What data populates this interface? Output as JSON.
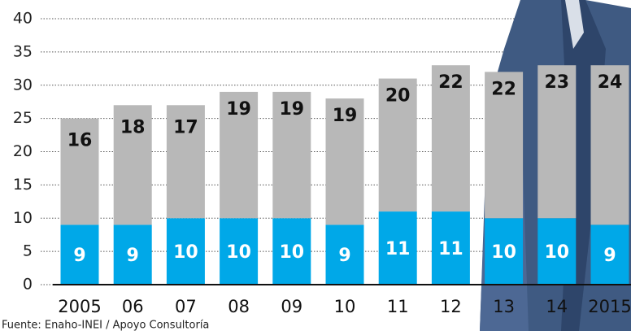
{
  "chart_data": {
    "type": "stacked-bar",
    "categories": [
      "2005",
      "06",
      "07",
      "08",
      "09",
      "10",
      "11",
      "12",
      "13",
      "14",
      "2015"
    ],
    "series": [
      {
        "color": "#00a8e8",
        "values": [
          9,
          9,
          10,
          10,
          10,
          9,
          11,
          11,
          10,
          10,
          9
        ]
      },
      {
        "color": "#b8b8b8",
        "values": [
          16,
          18,
          17,
          19,
          19,
          19,
          20,
          22,
          22,
          23,
          24
        ]
      }
    ],
    "ylim": [
      0,
      40
    ],
    "yticks": [
      0,
      5,
      10,
      15,
      20,
      25,
      30,
      35,
      40
    ],
    "grid": true,
    "source": "Fuente: Enaho-INEI / Apoyo Consultoría"
  }
}
